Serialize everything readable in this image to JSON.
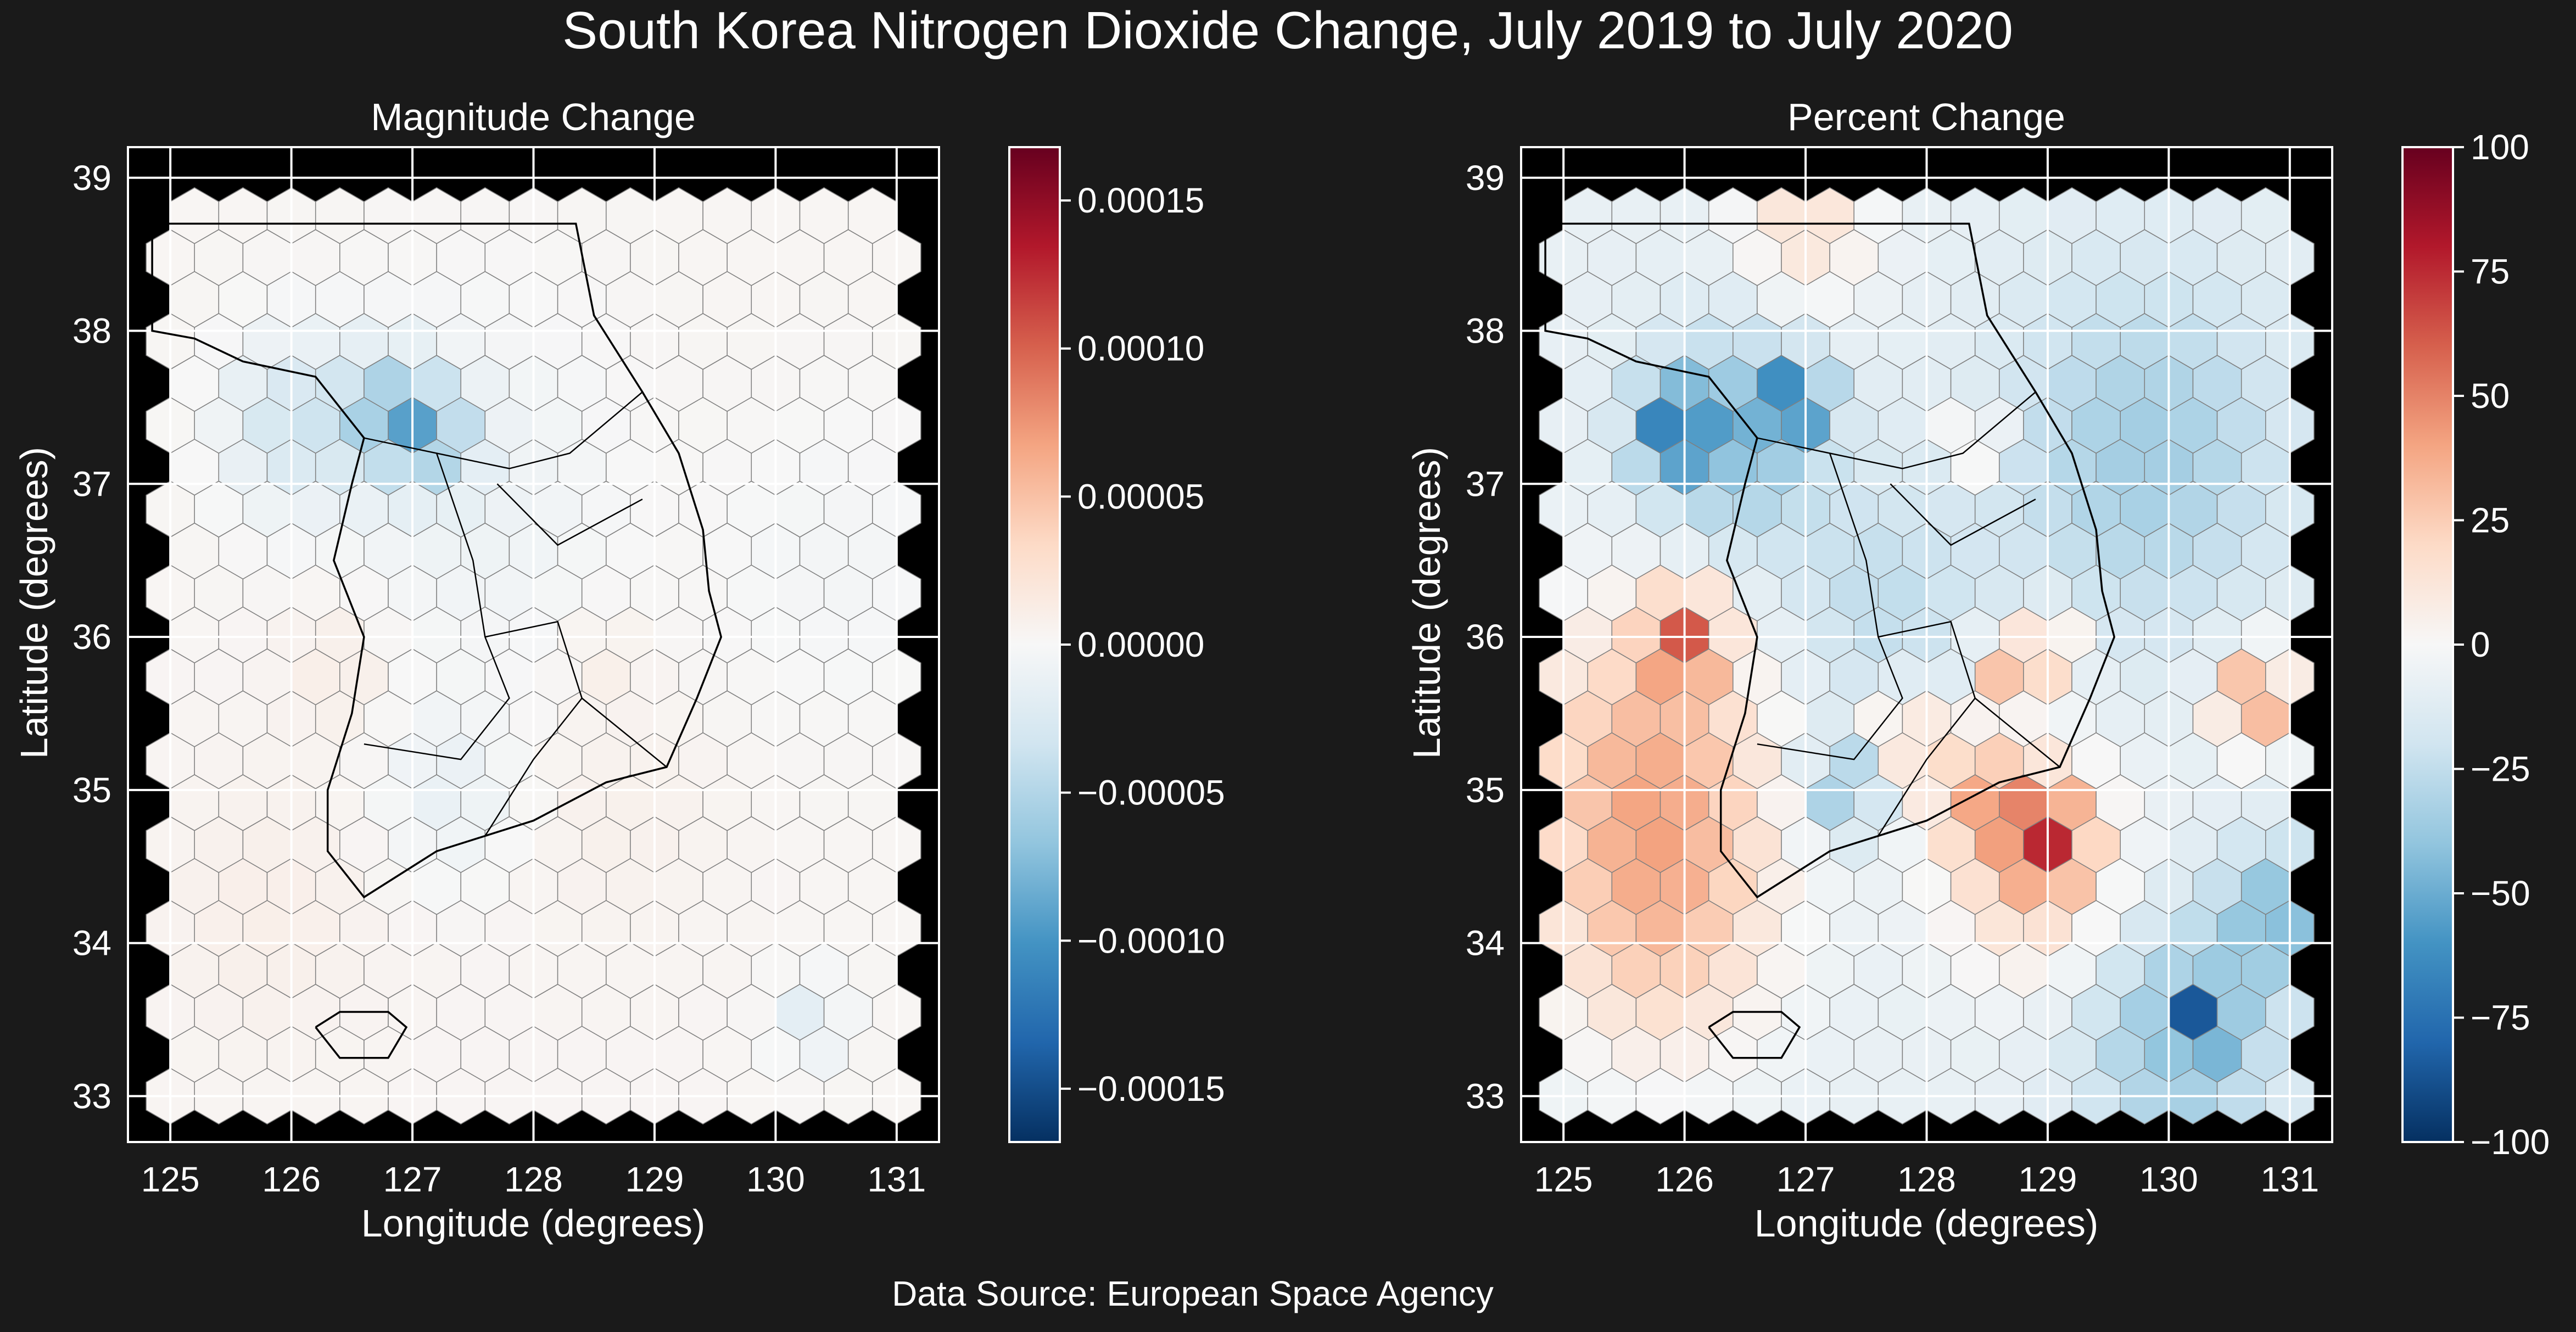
{
  "title": "South Korea Nitrogen Dioxide Change, July 2019 to July 2020",
  "footer": "Data Source: European Space Agency",
  "colors": {
    "background": "#1a1a1a",
    "axes_face": "#000000",
    "text": "#ffffff",
    "hex_edge": "#7f7f7f",
    "coastline": "#000000",
    "colormap": "RdBu_r",
    "colormap_stops": [
      "#053061",
      "#2166ac",
      "#4393c3",
      "#92c5de",
      "#d1e5f0",
      "#f7f7f7",
      "#fddbc7",
      "#f4a582",
      "#d6604d",
      "#b2182b",
      "#67001f"
    ]
  },
  "chart_data": [
    {
      "type": "heatmap",
      "subtype": "hexbin-map",
      "title": "Magnitude Change",
      "xlabel": "Longitude (degrees)",
      "ylabel": "Latitude (degrees)",
      "xlim": [
        124.65,
        131.35
      ],
      "ylim": [
        32.7,
        39.2
      ],
      "xticks": [
        "125",
        "126",
        "127",
        "128",
        "129",
        "130",
        "131"
      ],
      "yticks": [
        "33",
        "34",
        "35",
        "36",
        "37",
        "38",
        "39"
      ],
      "grid": true,
      "colorbar": {
        "range": [
          -0.000168,
          0.000168
        ],
        "ticks": [
          "−0.00015",
          "−0.00010",
          "−0.00005",
          "0.00000",
          "0.00005",
          "0.00010",
          "0.00015"
        ],
        "tick_values": [
          -0.00015,
          -0.0001,
          -5e-05,
          0,
          5e-05,
          0.0001,
          0.00015
        ]
      },
      "default_value": 3e-06,
      "hotspots": [
        {
          "lon": 127.0,
          "lat": 37.55,
          "value": -0.000165,
          "radius": 0.12
        },
        {
          "lon": 126.8,
          "lat": 37.45,
          "value": -5e-05,
          "radius": 0.45
        },
        {
          "lon": 127.2,
          "lat": 37.3,
          "value": -4e-05,
          "radius": 0.35
        },
        {
          "lon": 126.0,
          "lat": 37.4,
          "value": -3e-05,
          "radius": 0.6
        },
        {
          "lon": 127.5,
          "lat": 37.0,
          "value": -1e-05,
          "radius": 1.2
        },
        {
          "lon": 127.3,
          "lat": 35.0,
          "value": -1.2e-05,
          "radius": 0.6
        },
        {
          "lon": 126.4,
          "lat": 35.8,
          "value": 1.2e-05,
          "radius": 0.5
        },
        {
          "lon": 128.6,
          "lat": 35.85,
          "value": 1e-05,
          "radius": 0.35
        },
        {
          "lon": 128.7,
          "lat": 34.8,
          "value": 8e-06,
          "radius": 0.8
        },
        {
          "lon": 125.8,
          "lat": 34.2,
          "value": 1e-05,
          "radius": 0.9
        },
        {
          "lon": 130.3,
          "lat": 33.5,
          "value": -2e-05,
          "radius": 0.3
        },
        {
          "lon": 130.5,
          "lat": 36.5,
          "value": -4e-06,
          "radius": 1.0
        }
      ]
    },
    {
      "type": "heatmap",
      "subtype": "hexbin-map",
      "title": "Percent Change",
      "xlabel": "Longitude (degrees)",
      "ylabel": "Latitude (degrees)",
      "xlim": [
        124.65,
        131.35
      ],
      "ylim": [
        32.7,
        39.2
      ],
      "xticks": [
        "125",
        "126",
        "127",
        "128",
        "129",
        "130",
        "131"
      ],
      "yticks": [
        "33",
        "34",
        "35",
        "36",
        "37",
        "38",
        "39"
      ],
      "grid": true,
      "colorbar": {
        "range": [
          -100,
          100
        ],
        "ticks": [
          "−100",
          "−75",
          "−50",
          "−25",
          "0",
          "25",
          "50",
          "75",
          "100"
        ],
        "tick_values": [
          -100,
          -75,
          -50,
          -25,
          0,
          25,
          50,
          75,
          100
        ]
      },
      "default_value": -8,
      "hotspots": [
        {
          "lon": 125.9,
          "lat": 37.35,
          "value": -55,
          "radius": 0.35
        },
        {
          "lon": 126.9,
          "lat": 37.55,
          "value": -55,
          "radius": 0.3
        },
        {
          "lon": 126.4,
          "lat": 37.3,
          "value": -40,
          "radius": 0.8
        },
        {
          "lon": 129.8,
          "lat": 37.2,
          "value": -35,
          "radius": 1.3
        },
        {
          "lon": 130.3,
          "lat": 33.5,
          "value": -75,
          "radius": 0.2
        },
        {
          "lon": 130.1,
          "lat": 33.4,
          "value": -40,
          "radius": 0.9
        },
        {
          "lon": 130.9,
          "lat": 34.2,
          "value": -40,
          "radius": 0.5
        },
        {
          "lon": 127.3,
          "lat": 35.0,
          "value": -40,
          "radius": 0.35
        },
        {
          "lon": 127.6,
          "lat": 36.2,
          "value": -25,
          "radius": 0.9
        },
        {
          "lon": 126.0,
          "lat": 36.0,
          "value": 45,
          "radius": 0.35
        },
        {
          "lon": 125.7,
          "lat": 35.2,
          "value": 30,
          "radius": 1.1
        },
        {
          "lon": 125.8,
          "lat": 34.1,
          "value": 22,
          "radius": 1.0
        },
        {
          "lon": 129.0,
          "lat": 34.7,
          "value": 45,
          "radius": 0.35
        },
        {
          "lon": 128.9,
          "lat": 34.5,
          "value": 25,
          "radius": 0.8
        },
        {
          "lon": 128.4,
          "lat": 35.0,
          "value": 25,
          "radius": 0.45
        },
        {
          "lon": 130.7,
          "lat": 35.6,
          "value": 45,
          "radius": 0.35
        },
        {
          "lon": 128.4,
          "lat": 37.3,
          "value": 40,
          "radius": 0.2
        },
        {
          "lon": 129.0,
          "lat": 35.9,
          "value": 30,
          "radius": 0.3
        },
        {
          "lon": 128.6,
          "lat": 35.8,
          "value": 30,
          "radius": 0.25
        },
        {
          "lon": 127.8,
          "lat": 35.4,
          "value": 25,
          "radius": 0.3
        },
        {
          "lon": 127.0,
          "lat": 38.7,
          "value": 15,
          "radius": 0.6
        }
      ]
    }
  ]
}
